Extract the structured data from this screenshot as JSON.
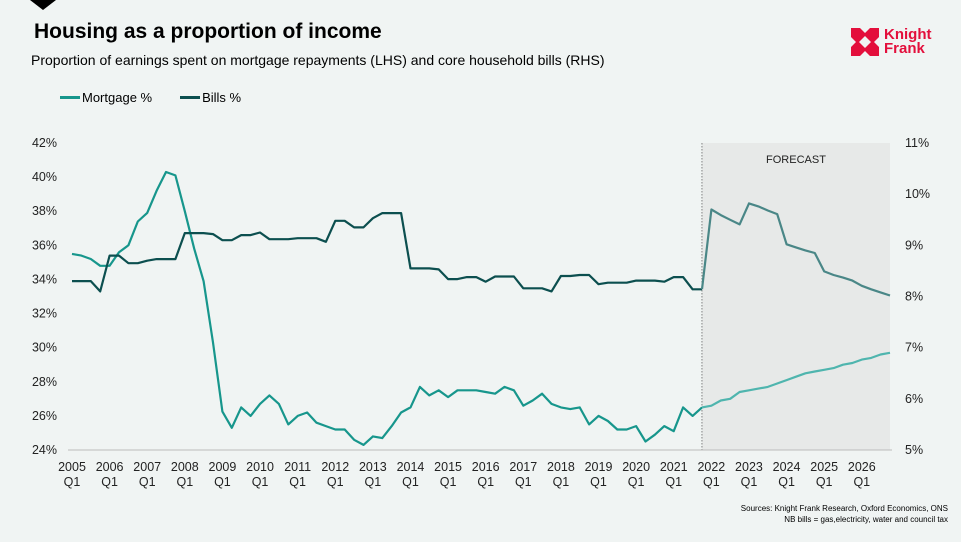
{
  "header": {
    "title": "Housing as a proportion of income",
    "subtitle": "Proportion of earnings spent on mortgage repayments (LHS) and core household bills (RHS)"
  },
  "logo": {
    "text_line1": "Knight",
    "text_line2": "Frank",
    "color": "#e30f3c"
  },
  "footer": {
    "sources": "Sources: Knight Frank Research, Oxford Economics, ONS",
    "note": "NB bills = gas,electricity, water and council tax"
  },
  "chart_data": {
    "type": "line",
    "title": "Housing as a proportion of income",
    "x_start": "2005 Q1",
    "x_end": "2026 Q4",
    "frequency": "quarterly",
    "year_labels": [
      "2005",
      "2006",
      "2007",
      "2008",
      "2009",
      "2010",
      "2011",
      "2012",
      "2013",
      "2014",
      "2015",
      "2016",
      "2017",
      "2018",
      "2019",
      "2020",
      "2021",
      "2022",
      "2023",
      "2024",
      "2025",
      "2026"
    ],
    "quarter_label": "Q1",
    "left_axis": {
      "min": 24,
      "max": 42,
      "step": 2,
      "suffix": "%",
      "ticks": [
        "24%",
        "26%",
        "28%",
        "30%",
        "32%",
        "34%",
        "36%",
        "38%",
        "40%",
        "42%"
      ]
    },
    "right_axis": {
      "min": 5,
      "max": 11,
      "step": 1,
      "suffix": "%",
      "ticks": [
        "5%",
        "6%",
        "7%",
        "8%",
        "9%",
        "10%",
        "11%"
      ]
    },
    "forecast": {
      "label": "FORECAST",
      "start": "2021 Q4",
      "shade_color": "#e7e9e8"
    },
    "grid": false,
    "legend_position": "top-left",
    "series": [
      {
        "name": "Mortgage %",
        "axis": "left",
        "color": "#17968c",
        "forecast_color": "#4fb5ae",
        "values": [
          35.5,
          35.4,
          35.2,
          34.8,
          34.8,
          35.6,
          36.0,
          37.4,
          37.9,
          39.2,
          40.3,
          40.1,
          38.0,
          35.8,
          33.9,
          30.3,
          26.25,
          25.3,
          26.5,
          26.0,
          26.7,
          27.2,
          26.7,
          25.5,
          26.0,
          26.2,
          25.6,
          25.4,
          25.2,
          25.2,
          24.6,
          24.3,
          24.8,
          24.7,
          25.4,
          26.2,
          26.5,
          27.7,
          27.2,
          27.5,
          27.1,
          27.5,
          27.5,
          27.5,
          27.4,
          27.3,
          27.7,
          27.5,
          26.6,
          26.9,
          27.3,
          26.7,
          26.5,
          26.4,
          26.5,
          25.5,
          26.0,
          25.7,
          25.2,
          25.2,
          25.4,
          24.5,
          24.9,
          25.4,
          25.1,
          26.5,
          26.0,
          26.5,
          26.6,
          26.9,
          27.0,
          27.4,
          27.5,
          27.6,
          27.7,
          27.9,
          28.1,
          28.3,
          28.5,
          28.6,
          28.7,
          28.8,
          29.0,
          29.1,
          29.3,
          29.4,
          29.6,
          29.7
        ]
      },
      {
        "name": "Bills %",
        "axis": "right",
        "color": "#0c4f4f",
        "forecast_color": "#4a8787",
        "values": [
          8.3,
          8.3,
          8.3,
          8.1,
          8.8,
          8.8,
          8.65,
          8.65,
          8.7,
          8.73,
          8.73,
          8.73,
          9.24,
          9.24,
          9.24,
          9.22,
          9.1,
          9.1,
          9.2,
          9.2,
          9.25,
          9.12,
          9.12,
          9.12,
          9.14,
          9.14,
          9.14,
          9.07,
          9.48,
          9.48,
          9.35,
          9.35,
          9.53,
          9.63,
          9.63,
          9.63,
          8.55,
          8.55,
          8.55,
          8.53,
          8.34,
          8.34,
          8.38,
          8.38,
          8.29,
          8.39,
          8.39,
          8.39,
          8.16,
          8.16,
          8.16,
          8.1,
          8.4,
          8.4,
          8.42,
          8.42,
          8.24,
          8.27,
          8.27,
          8.27,
          8.31,
          8.31,
          8.31,
          8.29,
          8.38,
          8.38,
          8.14,
          8.14,
          9.7,
          9.59,
          9.5,
          9.41,
          9.82,
          9.76,
          9.68,
          9.61,
          9.02,
          8.96,
          8.9,
          8.85,
          8.49,
          8.42,
          8.37,
          8.31,
          8.21,
          8.14,
          8.08,
          8.02
        ]
      }
    ]
  }
}
